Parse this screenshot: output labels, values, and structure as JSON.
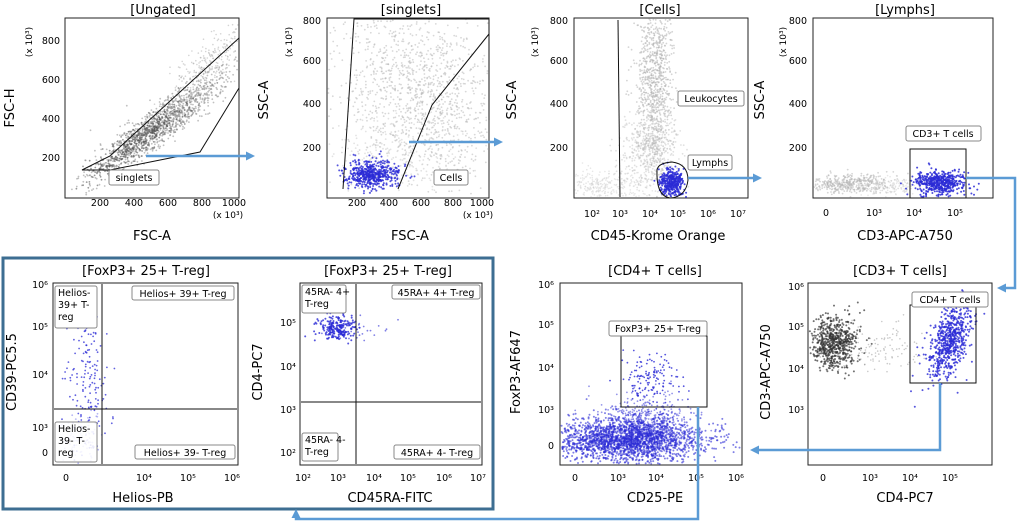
{
  "figure": {
    "arrow_color": "#5b9bd5",
    "dot_color": "#2b2bd6",
    "gray_color": "#9a9a9a"
  },
  "chart_data": [
    {
      "id": "ungated",
      "type": "scatter",
      "title": "[Ungated]",
      "xlabel": "FSC-A",
      "ylabel": "FSC-H",
      "x_mult": "(x 10³)",
      "y_mult": "(x 10³)",
      "xticks": [
        "200",
        "400",
        "600",
        "800",
        "1000"
      ],
      "yticks": [
        "200",
        "400",
        "600",
        "800"
      ],
      "xlim": [
        0,
        1000
      ],
      "ylim": [
        0,
        900
      ],
      "gates": [
        {
          "label": "singlets"
        }
      ]
    },
    {
      "id": "singlets",
      "type": "scatter",
      "title": "[singlets]",
      "xlabel": "FSC-A",
      "ylabel": "SSC-A",
      "x_mult": "(x 10³)",
      "y_mult": "(x 10³)",
      "xticks": [
        "200",
        "400",
        "600",
        "800",
        "1000"
      ],
      "yticks": [
        "200",
        "400",
        "600",
        "800"
      ],
      "xlim": [
        0,
        1000
      ],
      "ylim": [
        0,
        800
      ],
      "gates": [
        {
          "label": "Cells"
        }
      ]
    },
    {
      "id": "cells",
      "type": "scatter",
      "title": "[Cells]",
      "xlabel": "CD45-Krome Orange",
      "ylabel": "SSC-A",
      "y_mult": "(x 10³)",
      "xticks": [
        "10²",
        "10³",
        "10⁴",
        "10⁵",
        "10⁶",
        "10⁷"
      ],
      "yticks": [
        "200",
        "400",
        "600",
        "800"
      ],
      "ylim": [
        0,
        800
      ],
      "gates": [
        {
          "label": "Leukocytes"
        },
        {
          "label": "Lymphs"
        }
      ]
    },
    {
      "id": "lymphs",
      "type": "scatter",
      "title": "[Lymphs]",
      "xlabel": "CD3-APC-A750",
      "ylabel": "SSC-A",
      "y_mult": "(x 10³)",
      "xticks": [
        "0",
        "10³",
        "10⁴",
        "10⁵"
      ],
      "yticks": [
        "200",
        "400",
        "600",
        "800"
      ],
      "ylim": [
        0,
        800
      ],
      "gates": [
        {
          "label": "CD3+ T cells"
        }
      ]
    },
    {
      "id": "cd3",
      "type": "scatter",
      "title": "[CD3+ T cells]",
      "xlabel": "CD4-PC7",
      "ylabel": "CD3-APC-A750",
      "xticks": [
        "0",
        "10³",
        "10⁴",
        "10⁵"
      ],
      "yticks": [
        "10³",
        "10⁴",
        "10⁵",
        "10⁶"
      ],
      "gates": [
        {
          "label": "CD4+ T cells"
        }
      ]
    },
    {
      "id": "cd4",
      "type": "scatter",
      "title": "[CD4+ T cells]",
      "xlabel": "CD25-PE",
      "ylabel": "FoxP3-AF647",
      "xticks": [
        "0",
        "10³",
        "10⁴",
        "10⁵",
        "10⁶"
      ],
      "yticks": [
        "0",
        "10³",
        "10⁴",
        "10⁵",
        "10⁶"
      ],
      "gates": [
        {
          "label": "FoxP3+ 25+ T-reg"
        }
      ]
    },
    {
      "id": "treg1",
      "type": "scatter",
      "title": "[FoxP3+ 25+ T-reg]",
      "xlabel": "Helios-PB",
      "ylabel": "CD39-PC5.5",
      "xticks": [
        "0",
        "10⁴",
        "10⁵",
        "10⁶"
      ],
      "yticks": [
        "0",
        "10³",
        "10⁴",
        "10⁵",
        "10⁶"
      ],
      "quadrants": [
        "Helios- 39+ T-reg",
        "Helios+ 39+ T-reg",
        "Helios- 39- T-reg",
        "Helios+ 39- T-reg"
      ]
    },
    {
      "id": "treg2",
      "type": "scatter",
      "title": "[FoxP3+ 25+ T-reg]",
      "xlabel": "CD45RA-FITC",
      "ylabel": "CD4-PC7",
      "xticks": [
        "10²",
        "10³",
        "10⁴",
        "10⁵",
        "10⁶",
        "10⁷"
      ],
      "yticks": [
        "10²",
        "10³",
        "10⁴",
        "10⁵"
      ],
      "quadrants": [
        "45RA- 4+ T-reg",
        "45RA+ 4+ T-reg",
        "45RA- 4- T-reg",
        "45RA+ 4- T-reg"
      ]
    }
  ]
}
